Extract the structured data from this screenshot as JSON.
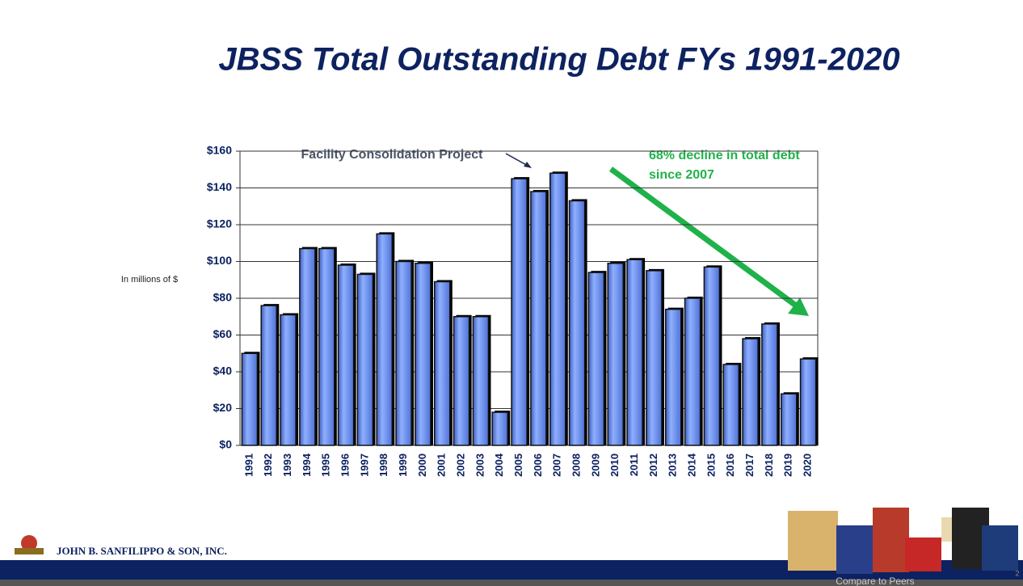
{
  "chart_data": {
    "type": "bar",
    "title": "JBSS Total Outstanding Debt FYs 1991-2020",
    "y_axis_label": "In millions of $",
    "annotations": [
      "Facility Consolidation Project",
      "68% decline in total debt",
      "since 2007"
    ],
    "categories": [
      "1991",
      "1992",
      "1993",
      "1994",
      "1995",
      "1996",
      "1997",
      "1998",
      "1999",
      "2000",
      "2001",
      "2002",
      "2003",
      "2004",
      "2005",
      "2006",
      "2007",
      "2008",
      "2009",
      "2010",
      "2011",
      "2012",
      "2013",
      "2014",
      "2015",
      "2016",
      "2017",
      "2018",
      "2019",
      "2020"
    ],
    "values": [
      50,
      76,
      71,
      107,
      107,
      98,
      93,
      115,
      100,
      99,
      89,
      70,
      70,
      18,
      145,
      138,
      148,
      133,
      94,
      99,
      101,
      95,
      74,
      80,
      97,
      44,
      58,
      66,
      28,
      47
    ],
    "color": "#6a8ee6",
    "ylim": [
      0,
      160
    ],
    "yticks": [
      {
        "value": 0,
        "label": "$0"
      },
      {
        "value": 20,
        "label": "$20"
      },
      {
        "value": 40,
        "label": "$40"
      },
      {
        "value": 60,
        "label": "$60"
      },
      {
        "value": 80,
        "label": "$80"
      },
      {
        "value": 100,
        "label": "$100"
      },
      {
        "value": 120,
        "label": "$120"
      },
      {
        "value": 140,
        "label": "$140"
      },
      {
        "value": 160,
        "label": "$160"
      }
    ],
    "grid": true
  },
  "footer": {
    "company": "JOHN B. SANFILIPPO & SON, INC.",
    "link": "Compare to Peers",
    "page_number": "2"
  }
}
